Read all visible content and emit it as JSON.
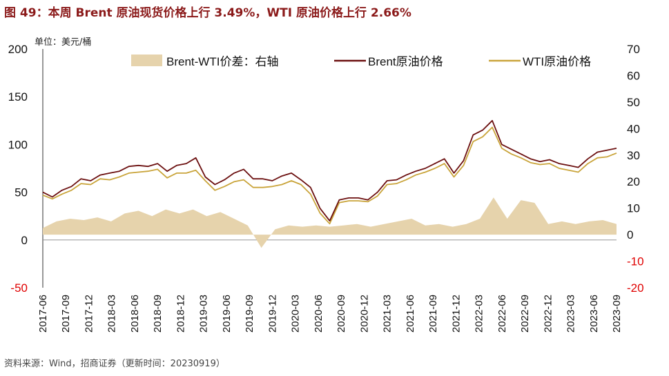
{
  "title": "图 49：本周 Brent 原油现货价格上行 3.49%，WTI 原油价格上行 2.66%",
  "unit_label": "单位：美元/桶",
  "source": "资料来源：Wind，招商证券（更新时间：20230919）",
  "colors": {
    "brent": "#6B0F0F",
    "wti": "#C9A43A",
    "spread": "#E6D3AC",
    "title": "#8B1A1A",
    "negative_tick": "#E00000"
  },
  "chart_data": {
    "type": "line",
    "title": "本周 Brent 原油现货价格上行 3.49%，WTI 原油价格上行 2.66%",
    "ylabel": "单位：美元/桶",
    "ylim": [
      -50,
      200
    ],
    "ylim_right": [
      -20,
      70
    ],
    "yticks_left": [
      "200",
      "150",
      "100",
      "50",
      "0",
      "-50"
    ],
    "yticks_right": [
      "70",
      "60",
      "50",
      "40",
      "30",
      "20",
      "10",
      "0",
      "-10",
      "-20"
    ],
    "x_ticks": [
      "2017-06",
      "2017-09",
      "2017-12",
      "2018-03",
      "2018-06",
      "2018-09",
      "2018-12",
      "2019-03",
      "2019-06",
      "2019-09",
      "2019-12",
      "2020-03",
      "2020-06",
      "2020-09",
      "2020-12",
      "2021-03",
      "2021-06",
      "2021-09",
      "2021-12",
      "2022-03",
      "2022-06",
      "2022-09",
      "2022-12",
      "2023-03",
      "2023-06",
      "2023-09"
    ],
    "legend_position": "top",
    "series": [
      {
        "name": "Brent-WTI价差：右轴",
        "type": "area",
        "axis": "right",
        "values": [
          2.5,
          5,
          6,
          5.5,
          6.5,
          5,
          8,
          9,
          7,
          9.5,
          8,
          9.5,
          7,
          8.5,
          6,
          3.5,
          -5,
          2,
          3.5,
          3,
          3.5,
          3,
          3.5,
          4,
          3,
          4,
          5,
          6,
          3.5,
          4,
          3,
          4,
          6,
          14,
          6,
          13,
          12,
          4,
          5,
          4,
          5,
          5.5,
          4
        ]
      },
      {
        "name": "Brent原油价格",
        "type": "line",
        "axis": "left",
        "values": [
          50,
          45,
          52,
          56,
          64,
          62,
          68,
          70,
          72,
          77,
          78,
          77,
          80,
          72,
          78,
          80,
          86,
          66,
          58,
          63,
          70,
          74,
          64,
          64,
          62,
          67,
          70,
          63,
          55,
          33,
          20,
          42,
          44,
          44,
          42,
          50,
          62,
          63,
          68,
          72,
          75,
          80,
          85,
          70,
          83,
          110,
          115,
          125,
          100,
          95,
          90,
          85,
          82,
          84,
          80,
          78,
          76,
          85,
          92,
          94,
          96
        ]
      },
      {
        "name": "WTI原油价格",
        "type": "line",
        "axis": "left",
        "values": [
          47,
          43,
          48,
          52,
          59,
          58,
          64,
          63,
          66,
          70,
          71,
          72,
          74,
          65,
          70,
          70,
          73,
          62,
          52,
          56,
          61,
          63,
          55,
          55,
          56,
          58,
          62,
          58,
          48,
          28,
          17,
          39,
          41,
          41,
          40,
          46,
          58,
          59,
          63,
          68,
          71,
          75,
          80,
          66,
          78,
          103,
          108,
          118,
          96,
          90,
          86,
          81,
          79,
          80,
          75,
          73,
          71,
          80,
          86,
          87,
          91
        ]
      }
    ]
  }
}
